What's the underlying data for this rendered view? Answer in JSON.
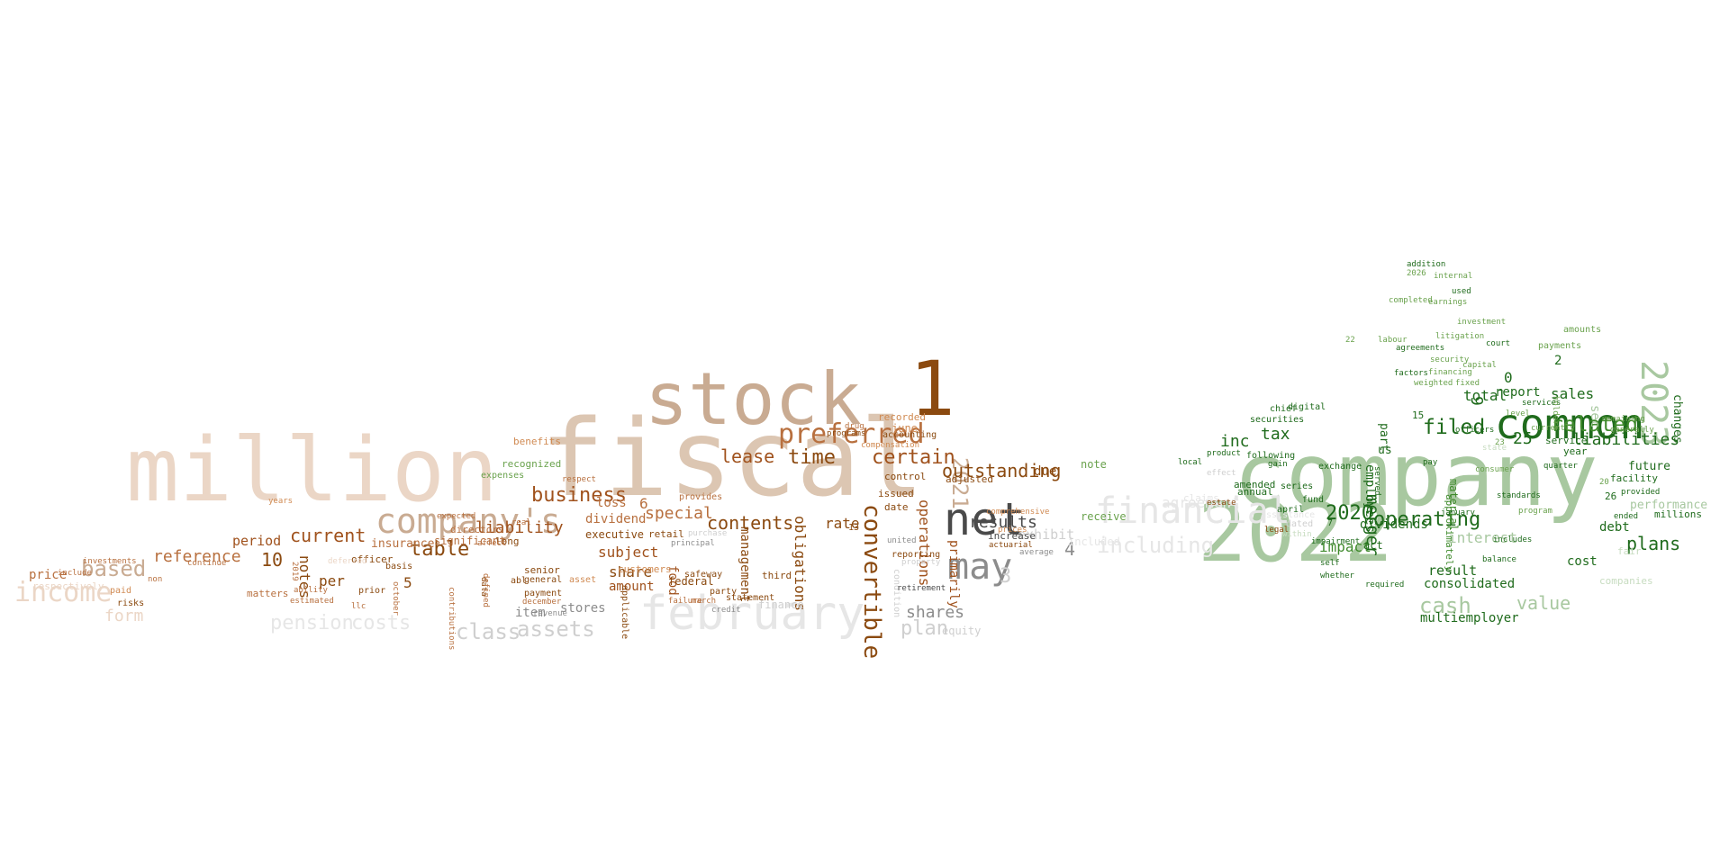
{
  "palette": {
    "brown_dark": "#8b4a10",
    "brown": "#a0521d",
    "brown_mid": "#b8703f",
    "brown_light": "#d08a52",
    "tan": "#c9ab92",
    "tan_light": "#dcc6b2",
    "peach": "#ebd6c6",
    "peach_pale": "#f2e3d8",
    "grey_dark": "#4a4a4a",
    "grey": "#8c8c8c",
    "grey_light": "#cfcfcf",
    "grey_pale": "#e6e6e6",
    "green_dark": "#1f6b1c",
    "green": "#3f8a2c",
    "green_mid": "#6aa24d",
    "sage": "#a8c8a0",
    "sage_light": "#c7dcc0"
  },
  "words": [
    {
      "text": "fiscal",
      "color": "tan_light"
    },
    {
      "text": "million",
      "color": "peach"
    },
    {
      "text": "stock",
      "color": "tan"
    },
    {
      "text": "1",
      "color": "brown_dark"
    },
    {
      "text": "net",
      "color": "grey_dark"
    },
    {
      "text": "may",
      "color": "grey"
    },
    {
      "text": "company's",
      "color": "tan"
    },
    {
      "text": "february",
      "color": "grey_pale"
    },
    {
      "text": "income",
      "color": "peach"
    },
    {
      "text": "preferred",
      "color": "brown_mid"
    },
    {
      "text": "business",
      "color": "brown"
    },
    {
      "text": "table",
      "color": "brown_dark"
    },
    {
      "text": "current",
      "color": "brown"
    },
    {
      "text": "based",
      "color": "tan"
    },
    {
      "text": "convertible",
      "color": "brown_dark"
    },
    {
      "text": "2021",
      "color": "tan"
    },
    {
      "text": "certain",
      "color": "brown"
    },
    {
      "text": "time",
      "color": "brown_dark"
    },
    {
      "text": "lease",
      "color": "brown"
    },
    {
      "text": "contents",
      "color": "brown_dark"
    },
    {
      "text": "outstanding",
      "color": "brown_dark"
    },
    {
      "text": "results",
      "color": "grey_dark"
    },
    {
      "text": "shares",
      "color": "grey"
    },
    {
      "text": "plan",
      "color": "grey_light"
    },
    {
      "text": "assets",
      "color": "grey_light"
    },
    {
      "text": "class",
      "color": "grey_light"
    },
    {
      "text": "pension",
      "color": "grey_pale"
    },
    {
      "text": "costs",
      "color": "grey_pale"
    },
    {
      "text": "liability",
      "color": "brown"
    },
    {
      "text": "reference",
      "color": "brown_mid"
    },
    {
      "text": "10",
      "color": "brown_dark"
    },
    {
      "text": "notes",
      "color": "brown_dark"
    },
    {
      "text": "subject",
      "color": "brown"
    },
    {
      "text": "share",
      "color": "brown_dark"
    },
    {
      "text": "amount",
      "color": "brown"
    },
    {
      "text": "special",
      "color": "brown_mid"
    },
    {
      "text": "dividend",
      "color": "brown_mid"
    },
    {
      "text": "loss",
      "color": "brown_mid"
    },
    {
      "text": "6",
      "color": "brown_mid"
    },
    {
      "text": "rate",
      "color": "brown_dark"
    },
    {
      "text": "obligations",
      "color": "brown_dark"
    },
    {
      "text": "management",
      "color": "brown_dark"
    },
    {
      "text": "operations",
      "color": "brown"
    },
    {
      "text": "primarily",
      "color": "brown"
    },
    {
      "text": "per",
      "color": "brown_dark"
    },
    {
      "text": "5",
      "color": "brown_dark"
    },
    {
      "text": "form",
      "color": "peach"
    },
    {
      "text": "price",
      "color": "brown_mid"
    },
    {
      "text": "period",
      "color": "brown"
    },
    {
      "text": "insurance",
      "color": "brown_mid"
    },
    {
      "text": "significant",
      "color": "brown_mid"
    },
    {
      "text": "item",
      "color": "grey"
    },
    {
      "text": "stores",
      "color": "grey"
    },
    {
      "text": "food",
      "color": "brown"
    },
    {
      "text": "3",
      "color": "grey_light"
    },
    {
      "text": "4",
      "color": "grey"
    },
    {
      "text": "exhibit",
      "color": "grey_light"
    },
    {
      "text": "due",
      "color": "brown_dark"
    },
    {
      "text": "executive",
      "color": "brown_dark"
    },
    {
      "text": "retail",
      "color": "brown_dark"
    },
    {
      "text": "federal",
      "color": "brown_dark"
    },
    {
      "text": "third",
      "color": "brown_dark"
    },
    {
      "text": "june",
      "color": "brown_light"
    },
    {
      "text": "recorded",
      "color": "brown_light"
    },
    {
      "text": "adjusted",
      "color": "brown_dark"
    },
    {
      "text": "increase",
      "color": "grey_dark"
    },
    {
      "text": "issued",
      "color": "brown_dark"
    },
    {
      "text": "control",
      "color": "brown_dark"
    },
    {
      "text": "date",
      "color": "brown_dark"
    },
    {
      "text": "finance",
      "color": "grey_light"
    },
    {
      "text": "equity",
      "color": "grey_light"
    },
    {
      "text": "directors",
      "color": "brown_mid"
    },
    {
      "text": "long",
      "color": "brown_dark"
    },
    {
      "text": "senior",
      "color": "brown_dark"
    },
    {
      "text": "general",
      "color": "brown_dark"
    },
    {
      "text": "payment",
      "color": "brown_dark"
    },
    {
      "text": "officer",
      "color": "brown_dark"
    },
    {
      "text": "basis",
      "color": "brown_dark"
    },
    {
      "text": "prior",
      "color": "brown_dark"
    },
    {
      "text": "matters",
      "color": "brown_mid"
    },
    {
      "text": "respectively",
      "color": "peach"
    },
    {
      "text": "company",
      "color": "sage"
    },
    {
      "text": "2022",
      "color": "sage"
    },
    {
      "text": "common",
      "color": "green_dark"
    },
    {
      "text": "2023",
      "color": "sage"
    },
    {
      "text": "financial",
      "color": "grey_pale"
    },
    {
      "text": "including",
      "color": "grey_pale"
    },
    {
      "text": "agreement",
      "color": "grey_pale"
    },
    {
      "text": "operating",
      "color": "green_dark"
    },
    {
      "text": "2020",
      "color": "green_dark"
    },
    {
      "text": "filed",
      "color": "green_dark"
    },
    {
      "text": "related",
      "color": "green"
    },
    {
      "text": "cash",
      "color": "sage"
    },
    {
      "text": "value",
      "color": "sage"
    },
    {
      "text": "merger",
      "color": "green_dark"
    },
    {
      "text": "plans",
      "color": "green_dark"
    },
    {
      "text": "sales",
      "color": "green_dark"
    },
    {
      "text": "liabilities",
      "color": "green_dark"
    },
    {
      "text": "25",
      "color": "green_dark"
    },
    {
      "text": "9",
      "color": "green_dark"
    },
    {
      "text": "tax",
      "color": "green_dark"
    },
    {
      "text": "inc",
      "color": "green_dark"
    },
    {
      "text": "0",
      "color": "green_dark"
    },
    {
      "text": "total",
      "color": "green_dark"
    },
    {
      "text": "impact",
      "color": "green"
    },
    {
      "text": "result",
      "color": "green_dark"
    },
    {
      "text": "interest",
      "color": "sage"
    },
    {
      "text": "report",
      "color": "green_dark"
    },
    {
      "text": "2",
      "color": "green_dark"
    },
    {
      "text": "debt",
      "color": "green_dark"
    },
    {
      "text": "cost",
      "color": "green_dark"
    },
    {
      "text": "future",
      "color": "green_dark"
    },
    {
      "text": "changes",
      "color": "green_dark"
    },
    {
      "text": "sec",
      "color": "sage"
    },
    {
      "text": "performance",
      "color": "sage"
    },
    {
      "text": "millions",
      "color": "green_dark"
    },
    {
      "text": "26",
      "color": "green_dark"
    },
    {
      "text": "15",
      "color": "green_dark"
    },
    {
      "text": "us",
      "color": "green_dark"
    },
    {
      "text": "dividends",
      "color": "green_dark"
    },
    {
      "text": "part",
      "color": "green_dark"
    },
    {
      "text": "act",
      "color": "green_dark"
    },
    {
      "text": "employees",
      "color": "green_dark"
    },
    {
      "text": "material",
      "color": "green"
    },
    {
      "text": "approximately",
      "color": "green"
    },
    {
      "text": "consolidated",
      "color": "green_dark"
    },
    {
      "text": "multiemployer",
      "color": "green_dark"
    },
    {
      "text": "fair",
      "color": "sage_light"
    },
    {
      "text": "companies",
      "color": "sage_light"
    },
    {
      "text": "facility",
      "color": "green_dark"
    },
    {
      "text": "service",
      "color": "green_dark"
    },
    {
      "text": "year",
      "color": "green_dark"
    },
    {
      "text": "securities",
      "color": "green_dark"
    },
    {
      "text": "following",
      "color": "green_dark"
    },
    {
      "text": "amended",
      "color": "green_dark"
    },
    {
      "text": "annual",
      "color": "green_dark"
    },
    {
      "text": "april",
      "color": "green_dark"
    },
    {
      "text": "7",
      "color": "green_dark"
    },
    {
      "text": "fund",
      "color": "green_dark"
    },
    {
      "text": "court",
      "color": "green_dark"
    },
    {
      "text": "used",
      "color": "green_dark"
    },
    {
      "text": "investment",
      "color": "green_mid"
    },
    {
      "text": "financing",
      "color": "green_mid"
    },
    {
      "text": "amounts",
      "color": "green_mid"
    },
    {
      "text": "payments",
      "color": "green_mid"
    },
    {
      "text": "note",
      "color": "green_mid"
    },
    {
      "text": "receive",
      "color": "green_mid"
    },
    {
      "text": "included",
      "color": "grey_pale"
    },
    {
      "text": "claims",
      "color": "grey_pale"
    },
    {
      "text": "dated",
      "color": "grey_light"
    },
    {
      "text": "assistance",
      "color": "grey_pale"
    },
    {
      "text": "exchange",
      "color": "green_dark"
    },
    {
      "text": "series",
      "color": "green_dark"
    },
    {
      "text": "chief",
      "color": "green_dark"
    },
    {
      "text": "digital",
      "color": "green_dark"
    },
    {
      "text": "balance",
      "color": "green_dark"
    },
    {
      "text": "january",
      "color": "green_dark"
    },
    {
      "text": "quarter",
      "color": "green_dark"
    },
    {
      "text": "includes",
      "color": "green_dark"
    },
    {
      "text": "required",
      "color": "green_dark"
    },
    {
      "text": "pay",
      "color": "green_dark"
    },
    {
      "text": "standards",
      "color": "green_dark"
    },
    {
      "text": "provided",
      "color": "green_dark"
    },
    {
      "text": "ended",
      "color": "green_dark"
    },
    {
      "text": "factors",
      "color": "green_dark"
    },
    {
      "text": "agreements",
      "color": "green_dark"
    },
    {
      "text": "weighted",
      "color": "green_mid"
    },
    {
      "text": "fixed",
      "color": "green_mid"
    },
    {
      "text": "capital",
      "color": "green_mid"
    },
    {
      "text": "security",
      "color": "green_mid"
    },
    {
      "text": "expenses",
      "color": "green_mid"
    },
    {
      "text": "recognized",
      "color": "green_mid"
    },
    {
      "text": "benefits",
      "color": "brown_light"
    },
    {
      "text": "customers",
      "color": "brown_light"
    },
    {
      "text": "asset",
      "color": "brown_light"
    },
    {
      "text": "abl",
      "color": "brown_dark"
    },
    {
      "text": "safeway",
      "color": "brown_dark"
    },
    {
      "text": "party",
      "color": "brown_dark"
    },
    {
      "text": "applicable",
      "color": "brown_dark"
    },
    {
      "text": "statement",
      "color": "brown_dark"
    },
    {
      "text": "13",
      "color": "brown_dark"
    },
    {
      "text": "reporting",
      "color": "brown_dark"
    },
    {
      "text": "condition",
      "color": "grey_light"
    },
    {
      "text": "accounting",
      "color": "brown_dark"
    },
    {
      "text": "risks",
      "color": "brown_dark"
    },
    {
      "text": "paid",
      "color": "brown_light"
    },
    {
      "text": "deferred",
      "color": "peach"
    },
    {
      "text": "ability",
      "color": "brown_mid"
    },
    {
      "text": "estimated",
      "color": "brown_mid"
    },
    {
      "text": "non",
      "color": "brown_mid"
    },
    {
      "text": "respect",
      "color": "brown_mid"
    },
    {
      "text": "real",
      "color": "brown_mid"
    },
    {
      "text": "years",
      "color": "brown_light"
    },
    {
      "text": "include",
      "color": "brown_mid"
    },
    {
      "text": "investments",
      "color": "brown_mid"
    },
    {
      "text": "continue",
      "color": "brown_mid"
    },
    {
      "text": "provides",
      "color": "brown_mid"
    },
    {
      "text": "contributions",
      "color": "brown_mid"
    },
    {
      "text": "october",
      "color": "brown_mid"
    },
    {
      "text": "data",
      "color": "brown_dark"
    },
    {
      "text": "2019",
      "color": "brown_mid"
    },
    {
      "text": "llc",
      "color": "brown_mid"
    },
    {
      "text": "defined",
      "color": "brown_mid"
    },
    {
      "text": "affect",
      "color": "brown_mid"
    },
    {
      "text": "expected",
      "color": "brown_mid"
    },
    {
      "text": "failure",
      "color": "brown_mid"
    },
    {
      "text": "march",
      "color": "brown_mid"
    },
    {
      "text": "december",
      "color": "brown_mid"
    },
    {
      "text": "revenue",
      "color": "grey"
    },
    {
      "text": "principal",
      "color": "grey"
    },
    {
      "text": "credit",
      "color": "grey"
    },
    {
      "text": "purchase",
      "color": "grey_light"
    },
    {
      "text": "drug",
      "color": "brown_mid"
    },
    {
      "text": "programs",
      "color": "brown_dark"
    },
    {
      "text": "compensation",
      "color": "brown_light"
    },
    {
      "text": "comprehensive",
      "color": "brown_light"
    },
    {
      "text": "prices",
      "color": "brown_light"
    },
    {
      "text": "actuarial",
      "color": "brown_dark"
    },
    {
      "text": "average",
      "color": "grey"
    },
    {
      "text": "retirement",
      "color": "grey_dark"
    },
    {
      "text": "property",
      "color": "grey_light"
    },
    {
      "text": "united",
      "color": "grey"
    },
    {
      "text": "estate",
      "color": "brown_dark"
    },
    {
      "text": "legal",
      "color": "brown_dark"
    },
    {
      "text": "within",
      "color": "sage_light"
    },
    {
      "text": "self",
      "color": "green_dark"
    },
    {
      "text": "local",
      "color": "green_dark"
    },
    {
      "text": "product",
      "color": "green_dark"
    },
    {
      "text": "effect",
      "color": "grey_light"
    },
    {
      "text": "gain",
      "color": "green_dark"
    },
    {
      "text": "whether",
      "color": "green_dark"
    },
    {
      "text": "impairment",
      "color": "green_dark"
    },
    {
      "text": "officers",
      "color": "green_dark"
    },
    {
      "text": "state",
      "color": "sage_light"
    },
    {
      "text": "services",
      "color": "green_dark"
    },
    {
      "text": "holders",
      "color": "green_mid"
    },
    {
      "text": "remaining",
      "color": "green_mid"
    },
    {
      "text": "generally",
      "color": "green_mid"
    },
    {
      "text": "currently",
      "color": "green_mid"
    },
    {
      "text": "level",
      "color": "green_mid"
    },
    {
      "text": "consumer",
      "color": "green_mid"
    },
    {
      "text": "program",
      "color": "green_mid"
    },
    {
      "text": "internal",
      "color": "green_mid"
    },
    {
      "text": "2026",
      "color": "green_mid"
    },
    {
      "text": "served",
      "color": "green_dark"
    },
    {
      "text": "earnings",
      "color": "green_mid"
    },
    {
      "text": "addition",
      "color": "green_dark"
    },
    {
      "text": "completed",
      "color": "green_mid"
    },
    {
      "text": "labour",
      "color": "green_mid"
    },
    {
      "text": "litigation",
      "color": "green_mid"
    },
    {
      "text": "20",
      "color": "green_mid"
    },
    {
      "text": "22",
      "color": "green_mid"
    },
    {
      "text": "23",
      "color": "green_mid"
    },
    {
      "text": "27",
      "color": "green_dark"
    },
    {
      "text": "16",
      "color": "green_dark"
    },
    {
      "text": "inventory",
      "color": "green_mid"
    },
    {
      "text": "sale",
      "color": "green_mid"
    }
  ]
}
